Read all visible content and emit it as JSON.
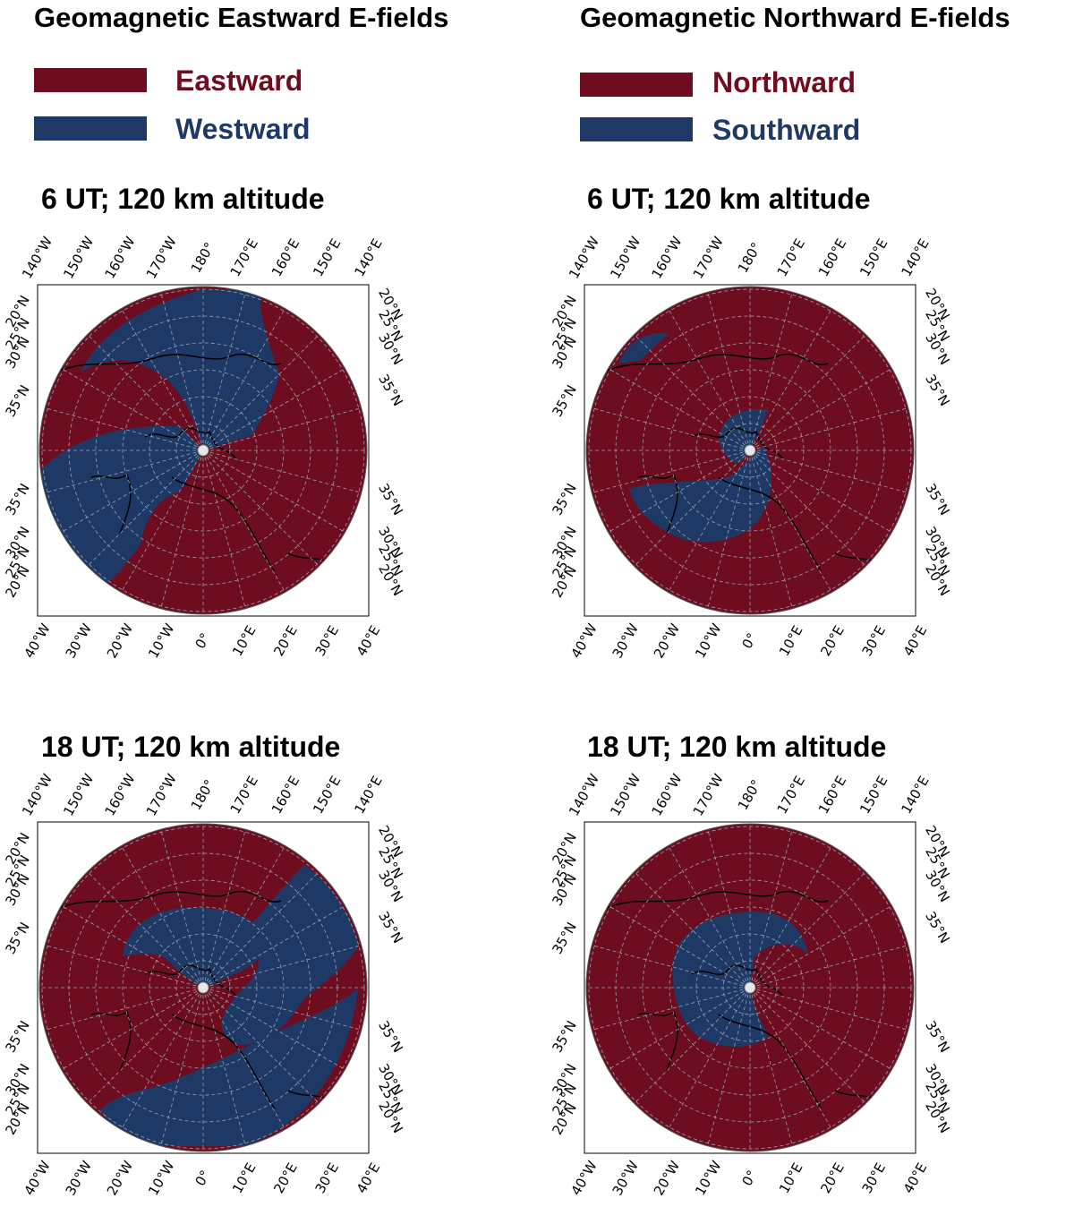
{
  "columns": [
    {
      "title": "Geomagnetic Eastward E-fields",
      "legend": [
        {
          "label": "Eastward",
          "color": "#6e0d1f"
        },
        {
          "label": "Westward",
          "color": "#1e3966"
        }
      ]
    },
    {
      "title": "Geomagnetic Northward E-fields",
      "legend": [
        {
          "label": "Northward",
          "color": "#6e0d1f"
        },
        {
          "label": "Southward",
          "color": "#1e3966"
        }
      ]
    }
  ],
  "panels": [
    {
      "title": "6 UT; 120 km altitude",
      "field": "Eastward E-fields",
      "ut": 6,
      "altitude_km": 120
    },
    {
      "title": "6 UT; 120 km altitude",
      "field": "Northward E-fields",
      "ut": 6,
      "altitude_km": 120
    },
    {
      "title": "18 UT; 120 km altitude",
      "field": "Eastward E-fields",
      "ut": 18,
      "altitude_km": 120
    },
    {
      "title": "18 UT; 120 km altitude",
      "field": "Northward E-fields",
      "ut": 18,
      "altitude_km": 120
    }
  ],
  "axis_labels": {
    "top": [
      "140°W",
      "150°W",
      "160°W",
      "170°W",
      "180°",
      "170°E",
      "160°E",
      "150°E",
      "140°E"
    ],
    "bottom": [
      "40°W",
      "30°W",
      "20°W",
      "10°W",
      "0°",
      "10°E",
      "20°E",
      "30°E",
      "40°E"
    ],
    "left_upper": [
      "20°N",
      "25°N",
      "30°N",
      "35°N"
    ],
    "left_lower": [
      "35°N",
      "30°N",
      "25°N",
      "20°N"
    ],
    "right_upper": [
      "20°N",
      "25°N",
      "30°N",
      "35°N"
    ],
    "right_lower": [
      "35°N",
      "30°N",
      "25°N",
      "20°N"
    ]
  },
  "colors": {
    "positive": "#6e0d1f",
    "negative": "#1e3966",
    "grid": "#9aa3b0",
    "coast": "#000000"
  }
}
